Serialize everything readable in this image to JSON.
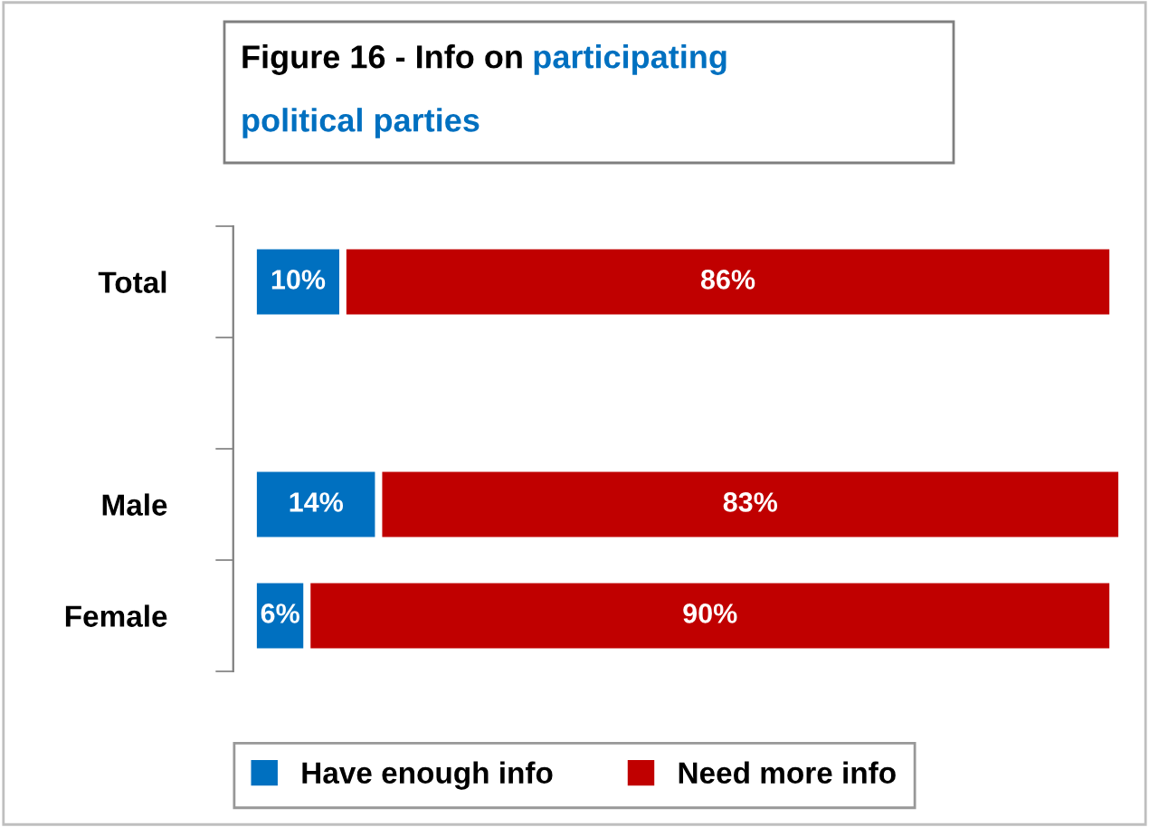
{
  "chart_data": {
    "type": "bar",
    "orientation": "horizontal",
    "stacked": true,
    "title": "Figure 16 - Info on",
    "subtitle": "participating political parties",
    "categories": [
      "Total",
      null,
      "Male",
      "Female"
    ],
    "series": [
      {
        "name": "Have enough info",
        "color": "#0070c0",
        "values": [
          10,
          null,
          14,
          6
        ],
        "value_labels": [
          "10%",
          null,
          "14%",
          "6%"
        ]
      },
      {
        "name": "Need more info",
        "color": "#c00000",
        "values": [
          86,
          null,
          83,
          90
        ],
        "value_labels": [
          "86%",
          null,
          "83%",
          "90%"
        ]
      }
    ],
    "legend": "bottom"
  }
}
